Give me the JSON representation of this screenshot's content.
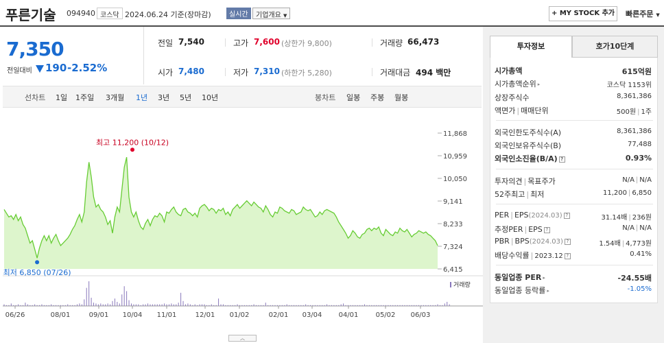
{
  "header": {
    "title": "푸른기술",
    "code": "094940",
    "market": "코스닥",
    "date": "2024.06.24",
    "basis": "기준(장마감)",
    "realtime": "실시간",
    "overview": "기업개요",
    "mystock": "+ MY STOCK 추가",
    "fast_order": "빠른주문"
  },
  "price": {
    "current": "7,350",
    "change_label": "전일대비",
    "change": "190",
    "rate": "-2.52%"
  },
  "quotes": {
    "prev_label": "전일",
    "prev": "7,540",
    "high_label": "고가",
    "high": "7,600",
    "upper_label": "(상한가",
    "upper": "9,800)",
    "volume_label": "거래량",
    "volume": "66,473",
    "open_label": "시가",
    "open": "7,480",
    "low_label": "저가",
    "low": "7,310",
    "lower_label": "(하한가",
    "lower": "5,280)",
    "amount_label": "거래대금",
    "amount": "494 백만"
  },
  "tabs": {
    "line_label": "선차트",
    "line": [
      "1일",
      "1주일",
      "3개월",
      "1년",
      "3년",
      "5년",
      "10년"
    ],
    "active_index": 3,
    "candle_label": "봉차트",
    "candle": [
      "일봉",
      "주봉",
      "월봉"
    ]
  },
  "colors": {
    "accent": "#1a6bd0",
    "up": "#e0002b",
    "line": "#66cc33",
    "fill": "#ddf5cc"
  },
  "chart_data": {
    "type": "area",
    "xlabel": "",
    "ylabel": "",
    "y_ticks": [
      "11,868",
      "10,959",
      "10,050",
      "9,141",
      "8,233",
      "7,324",
      "6,415"
    ],
    "y_tick_values": [
      11868,
      10959,
      10050,
      9141,
      8233,
      7324,
      6415
    ],
    "ylim": [
      6415,
      11868
    ],
    "x_ticks": [
      "06/26",
      "08/01",
      "09/01",
      "10/04",
      "11/01",
      "12/01",
      "01/02",
      "02/01",
      "03/04",
      "04/01",
      "05/02",
      "06/03"
    ],
    "max_label": "최고 11,200 (10/12)",
    "min_label": "최저 6,850 (07/26)",
    "max_value": 11200,
    "min_value": 6850,
    "volume_legend": "거래량",
    "series": [
      {
        "values": [
          8800,
          8650,
          8500,
          8550,
          8400,
          8600,
          8350,
          8500,
          8200,
          8050,
          7750,
          7450,
          7550,
          7200,
          6850,
          7250,
          7550,
          7750,
          7550,
          7750,
          7450,
          7650,
          7800,
          7550,
          7350,
          7450,
          7550,
          7650,
          7800,
          8000,
          8150,
          8400,
          8600,
          8300,
          8700,
          9900,
          10700,
          10100,
          9300,
          8900,
          9000,
          8800,
          8700,
          8500,
          8200,
          8350,
          7850,
          8500,
          8900,
          8700,
          9600,
          10500,
          10900,
          9300,
          8700,
          8500,
          8700,
          8350,
          8100,
          8000,
          8250,
          8400,
          8150,
          8400,
          8550,
          8500,
          8650,
          8550,
          8300,
          8700,
          8650,
          8800,
          8900,
          8700,
          8600,
          8550,
          8800,
          8850,
          8700,
          8650,
          8550,
          8650,
          8500,
          8850,
          8950,
          9000,
          8900,
          8750,
          8850,
          8800,
          8650,
          8800,
          8750,
          8850,
          8600,
          8700,
          8550,
          8800,
          8900,
          9000,
          8850,
          8950,
          9050,
          9150,
          9050,
          8950,
          9100,
          9000,
          8900,
          8850,
          8700,
          8950,
          8800,
          8600,
          8500,
          8700,
          8650,
          8900,
          8850,
          8750,
          8700,
          8650,
          8800,
          8750,
          8600,
          8650,
          8700,
          8900,
          8800,
          8750,
          8800,
          8650,
          8500,
          8550,
          8700,
          8600,
          8750,
          8800,
          8750,
          8700,
          8650,
          8500,
          8300,
          8150,
          8000,
          7850,
          7650,
          7750,
          7950,
          7850,
          7700,
          7650,
          7800,
          7850,
          8000,
          8050,
          7950,
          8050,
          8000,
          8100,
          7850,
          7750,
          8000,
          7900,
          7800,
          7750,
          7900,
          7850,
          8050,
          7950,
          7900,
          8000,
          7850,
          7700,
          7800,
          7850,
          7950,
          7900,
          7850,
          7900,
          7800,
          7750,
          7650,
          7550,
          7350
        ]
      }
    ],
    "volume": [
      2,
      1,
      1,
      3,
      1,
      1,
      2,
      1,
      1,
      4,
      2,
      1,
      1,
      2,
      1,
      1,
      2,
      1,
      1,
      1,
      2,
      1,
      1,
      1,
      1,
      1,
      1,
      2,
      1,
      1,
      1,
      2,
      3,
      2,
      8,
      22,
      30,
      10,
      4,
      3,
      2,
      3,
      2,
      2,
      3,
      2,
      6,
      9,
      5,
      3,
      14,
      24,
      18,
      7,
      3,
      2,
      2,
      2,
      1,
      2,
      2,
      3,
      2,
      2,
      2,
      2,
      2,
      2,
      3,
      2,
      2,
      3,
      2,
      2,
      4,
      16,
      6,
      2,
      3,
      2,
      1,
      2,
      1,
      2,
      2,
      2,
      1,
      1,
      2,
      1,
      1,
      9,
      2,
      2,
      1,
      1,
      1,
      1,
      1,
      2,
      1,
      1,
      1,
      1,
      1,
      1,
      2,
      1,
      1,
      1,
      1,
      4,
      1,
      1,
      1,
      1,
      1,
      1,
      1,
      1,
      2,
      1,
      1,
      1,
      1,
      1,
      1,
      1,
      2,
      1,
      1,
      1,
      1,
      1,
      1,
      1,
      1,
      2,
      1,
      1,
      1,
      1,
      1,
      2,
      3,
      1,
      1,
      1,
      1,
      1,
      1,
      1,
      1,
      2,
      1,
      1,
      1,
      1,
      1,
      1,
      1,
      1,
      1,
      1,
      1,
      1,
      1,
      1,
      1,
      1,
      1,
      1,
      1,
      1,
      1,
      1,
      1,
      1,
      1,
      1,
      1,
      1,
      1,
      1,
      2,
      1,
      1,
      3,
      5,
      2
    ]
  },
  "invest": {
    "tabs": [
      "투자정보",
      "호가10단계"
    ],
    "market_cap_label": "시가총액",
    "market_cap": "615억원",
    "rank_label": "시가총액순위",
    "rank": "코스닥 1153위",
    "shares_label": "상장주식수",
    "shares": "8,361,386",
    "face_label": "액면가",
    "unit_label": "매매단위",
    "face": "500원",
    "unit": "1주",
    "foreign_limit_label": "외국인한도주식수(A)",
    "foreign_limit": "8,361,386",
    "foreign_hold_label": "외국인보유주식수(B)",
    "foreign_hold": "77,488",
    "foreign_ratio_label": "외국인소진율(B/A)",
    "foreign_ratio": "0.93%",
    "opinion_label": "투자의견",
    "target_label": "목표주가",
    "opinion": "N/A",
    "target": "N/A",
    "w52_label": "52주최고",
    "w52_low_label": "최저",
    "w52_high": "11,200",
    "w52_low": "6,850",
    "per_label": "PER",
    "eps_label": "EPS",
    "per_date": "(2024.03)",
    "per": "31.14배",
    "eps": "236원",
    "est_per_label": "추정PER",
    "est_eps_label": "EPS",
    "est_per": "N/A",
    "est_eps": "N/A",
    "pbr_label": "PBR",
    "bps_label": "BPS",
    "pbr_date": "(2024.03)",
    "pbr": "1.54배",
    "bps": "4,773원",
    "div_label": "배당수익률",
    "div_date": "2023.12",
    "div": "0.41%",
    "sector_per_label": "동일업종 PER",
    "sector_per": "-24.55배",
    "sector_rate_label": "동일업종 등락률",
    "sector_rate": "-1.05%"
  },
  "collapse": "︿"
}
